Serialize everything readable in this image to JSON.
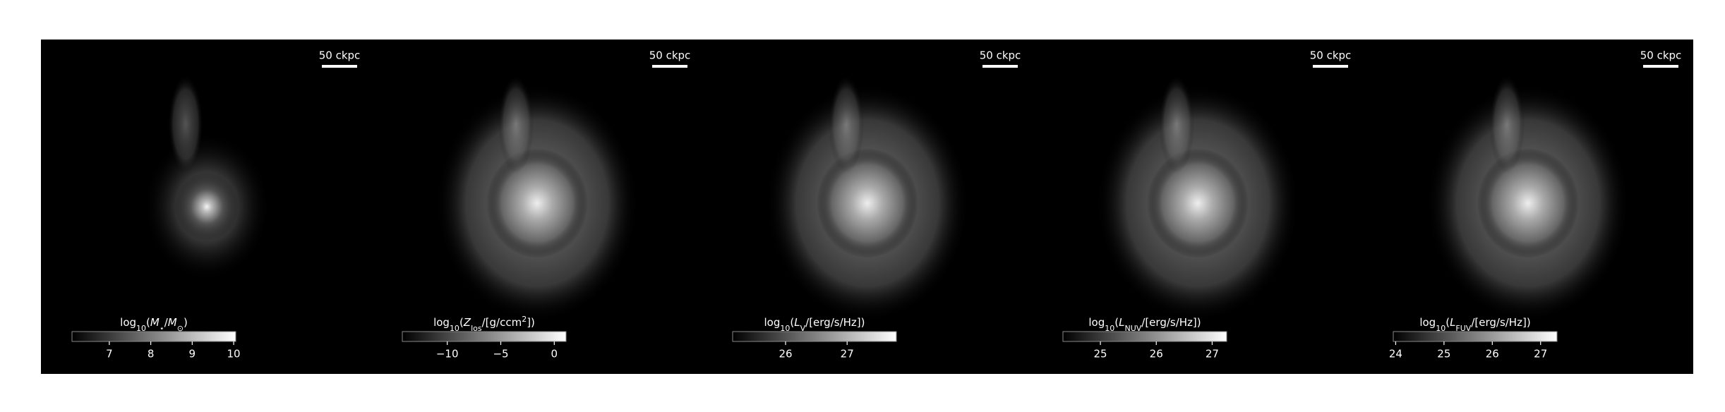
{
  "chart_data": [
    {
      "type": "image",
      "scalebar": "50 ckpc",
      "label": [
        {
          "text": "log"
        },
        {
          "sub": "10"
        },
        {
          "text": "("
        },
        {
          "italic": "M"
        },
        {
          "sub": "⋆"
        },
        {
          "text": "/"
        },
        {
          "italic": "M"
        },
        {
          "sub": "⊙"
        },
        {
          "text": ")"
        }
      ],
      "clim": [
        6.1,
        10.05
      ],
      "ticks": [
        7,
        8,
        9,
        10
      ]
    },
    {
      "type": "image",
      "scalebar": "50 ckpc",
      "label": [
        {
          "text": "log"
        },
        {
          "sub": "10"
        },
        {
          "text": "("
        },
        {
          "italic": "Z"
        },
        {
          "sub": "los"
        },
        {
          "text": "/[g/ccm"
        },
        {
          "sup": "2"
        },
        {
          "text": "])"
        }
      ],
      "clim": [
        -14.2,
        1.1
      ],
      "ticks": [
        {
          "value": -10,
          "label": "−10"
        },
        {
          "value": -5,
          "label": "−5"
        },
        0
      ]
    },
    {
      "type": "image",
      "scalebar": "50 ckpc",
      "label": [
        {
          "text": "log"
        },
        {
          "sub": "10"
        },
        {
          "text": "("
        },
        {
          "italic": "L"
        },
        {
          "sub": "V"
        },
        {
          "text": "/[erg/s/Hz])"
        }
      ],
      "clim": [
        25.14,
        27.8
      ],
      "ticks": [
        26,
        27
      ]
    },
    {
      "type": "image",
      "scalebar": "50 ckpc",
      "label": [
        {
          "text": "log"
        },
        {
          "sub": "10"
        },
        {
          "text": "("
        },
        {
          "italic": "L"
        },
        {
          "sub": "NUV"
        },
        {
          "text": "/[erg/s/Hz])"
        }
      ],
      "clim": [
        24.33,
        27.26
      ],
      "ticks": [
        25,
        26,
        27
      ]
    },
    {
      "type": "image",
      "scalebar": "50 ckpc",
      "label": [
        {
          "text": "log"
        },
        {
          "sub": "10"
        },
        {
          "text": "("
        },
        {
          "italic": "L"
        },
        {
          "sub": "FUV"
        },
        {
          "text": "/[erg/s/Hz])"
        }
      ],
      "clim": [
        23.95,
        27.34
      ],
      "ticks": [
        24,
        25,
        26,
        27
      ]
    }
  ]
}
